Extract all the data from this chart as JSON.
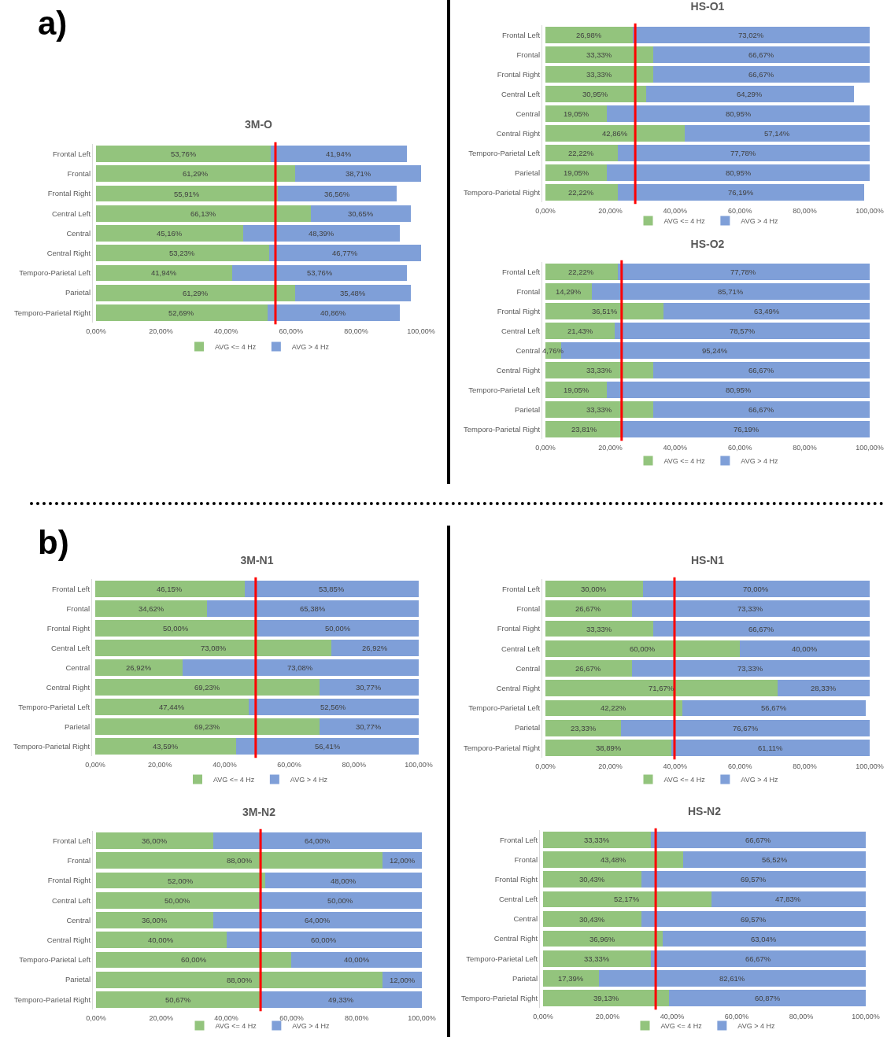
{
  "chart_data": [
    {
      "type": "bar",
      "orientation": "horizontal",
      "stacked": true,
      "title": "3M-O",
      "annotations": [
        "a)"
      ],
      "legend": "bottom",
      "xlim": [
        0,
        100
      ],
      "xticks": [
        {
          "value": 0,
          "label": "0,00%"
        },
        {
          "value": 20,
          "label": "20,00%"
        },
        {
          "value": 40,
          "label": "40,00%"
        },
        {
          "value": 60,
          "label": "60,00%"
        },
        {
          "value": 80,
          "label": "80,00%"
        },
        {
          "value": 100,
          "label": "100,00%"
        }
      ],
      "ref_lines": [
        {
          "axis": "x",
          "value": 55.2,
          "color": "#ff0000"
        }
      ],
      "categories": [
        "Frontal Left",
        "Frontal",
        "Frontal Right",
        "Central Left",
        "Central",
        "Central Right",
        "Temporo-Parietal Left",
        "Parietal",
        "Temporo-Parietal Right"
      ],
      "series": [
        {
          "name": "AVG <= 4 Hz",
          "color": "#93c47d",
          "values": [
            53.76,
            61.29,
            55.91,
            66.13,
            45.16,
            53.23,
            41.94,
            61.29,
            52.69
          ],
          "value_labels": [
            "53,76%",
            "61,29%",
            "55,91%",
            "66,13%",
            "45,16%",
            "53,23%",
            "41,94%",
            "61,29%",
            "52,69%"
          ]
        },
        {
          "name": "AVG > 4 Hz",
          "color": "#7f9fd8",
          "values": [
            41.94,
            38.71,
            36.56,
            30.65,
            48.39,
            46.77,
            53.76,
            35.48,
            40.86
          ],
          "value_labels": [
            "41,94%",
            "38,71%",
            "36,56%",
            "30,65%",
            "48,39%",
            "46,77%",
            "53,76%",
            "35,48%",
            "40,86%"
          ]
        }
      ]
    },
    {
      "type": "bar",
      "orientation": "horizontal",
      "stacked": true,
      "title": "HS-O1",
      "legend": "bottom",
      "xlim": [
        0,
        100
      ],
      "xticks": [
        {
          "value": 0,
          "label": "0,00%"
        },
        {
          "value": 20,
          "label": "20,00%"
        },
        {
          "value": 40,
          "label": "40,00%"
        },
        {
          "value": 60,
          "label": "60,00%"
        },
        {
          "value": 80,
          "label": "80,00%"
        },
        {
          "value": 100,
          "label": "100,00%"
        }
      ],
      "ref_lines": [
        {
          "axis": "x",
          "value": 27.7,
          "color": "#ff0000"
        }
      ],
      "categories": [
        "Frontal Left",
        "Frontal",
        "Frontal Right",
        "Central Left",
        "Central",
        "Central Right",
        "Temporo-Parietal Left",
        "Parietal",
        "Temporo-Parietal Right"
      ],
      "series": [
        {
          "name": "AVG <= 4 Hz",
          "color": "#93c47d",
          "values": [
            26.98,
            33.33,
            33.33,
            30.95,
            19.05,
            42.86,
            22.22,
            19.05,
            22.22
          ],
          "value_labels": [
            "26,98%",
            "33,33%",
            "33,33%",
            "30,95%",
            "19,05%",
            "42,86%",
            "22,22%",
            "19,05%",
            "22,22%"
          ]
        },
        {
          "name": "AVG > 4 Hz",
          "color": "#7f9fd8",
          "values": [
            73.02,
            66.67,
            66.67,
            64.29,
            80.95,
            57.14,
            77.78,
            80.95,
            76.19
          ],
          "value_labels": [
            "73,02%",
            "66,67%",
            "66,67%",
            "64,29%",
            "80,95%",
            "57,14%",
            "77,78%",
            "80,95%",
            "76,19%"
          ]
        }
      ]
    },
    {
      "type": "bar",
      "orientation": "horizontal",
      "stacked": true,
      "title": "HS-O2",
      "legend": "bottom",
      "xlim": [
        0,
        100
      ],
      "xticks": [
        {
          "value": 0,
          "label": "0,00%"
        },
        {
          "value": 20,
          "label": "20,00%"
        },
        {
          "value": 40,
          "label": "40,00%"
        },
        {
          "value": 60,
          "label": "60,00%"
        },
        {
          "value": 80,
          "label": "80,00%"
        },
        {
          "value": 100,
          "label": "100,00%"
        }
      ],
      "ref_lines": [
        {
          "axis": "x",
          "value": 23.5,
          "color": "#ff0000"
        }
      ],
      "categories": [
        "Frontal Left",
        "Frontal",
        "Frontal Right",
        "Central Left",
        "Central",
        "Central Right",
        "Temporo-Parietal Left",
        "Parietal",
        "Temporo-Parietal Right"
      ],
      "series": [
        {
          "name": "AVG <= 4 Hz",
          "color": "#93c47d",
          "values": [
            22.22,
            14.29,
            36.51,
            21.43,
            4.76,
            33.33,
            19.05,
            33.33,
            23.81
          ],
          "value_labels": [
            "22,22%",
            "14,29%",
            "36,51%",
            "21,43%",
            "4,76%",
            "33,33%",
            "19,05%",
            "33,33%",
            "23,81%"
          ]
        },
        {
          "name": "AVG > 4 Hz",
          "color": "#7f9fd8",
          "values": [
            77.78,
            85.71,
            63.49,
            78.57,
            95.24,
            66.67,
            80.95,
            66.67,
            76.19
          ],
          "value_labels": [
            "77,78%",
            "85,71%",
            "63,49%",
            "78,57%",
            "95,24%",
            "66,67%",
            "80,95%",
            "66,67%",
            "76,19%"
          ]
        }
      ]
    },
    {
      "type": "bar",
      "orientation": "horizontal",
      "stacked": true,
      "title": "3M-N1",
      "annotations": [
        "b)"
      ],
      "legend": "bottom",
      "xlim": [
        0,
        100
      ],
      "xticks": [
        {
          "value": 0,
          "label": "0,00%"
        },
        {
          "value": 20,
          "label": "20,00%"
        },
        {
          "value": 40,
          "label": "40,00%"
        },
        {
          "value": 60,
          "label": "60,00%"
        },
        {
          "value": 80,
          "label": "80,00%"
        },
        {
          "value": 100,
          "label": "100,00%"
        }
      ],
      "ref_lines": [
        {
          "axis": "x",
          "value": 49.6,
          "color": "#ff0000"
        }
      ],
      "categories": [
        "Frontal Left",
        "Frontal",
        "Frontal Right",
        "Central Left",
        "Central",
        "Central Right",
        "Temporo-Parietal Left",
        "Parietal",
        "Temporo-Parietal Right"
      ],
      "series": [
        {
          "name": "AVG <= 4 Hz",
          "color": "#93c47d",
          "values": [
            46.15,
            34.62,
            50,
            73.08,
            26.92,
            69.23,
            47.44,
            69.23,
            43.59
          ],
          "value_labels": [
            "46,15%",
            "34,62%",
            "50,00%",
            "73,08%",
            "26,92%",
            "69,23%",
            "47,44%",
            "69,23%",
            "43,59%"
          ]
        },
        {
          "name": "AVG > 4 Hz",
          "color": "#7f9fd8",
          "values": [
            53.85,
            65.38,
            50,
            26.92,
            73.08,
            30.77,
            52.56,
            30.77,
            56.41
          ],
          "value_labels": [
            "53,85%",
            "65,38%",
            "50,00%",
            "26,92%",
            "73,08%",
            "30,77%",
            "52,56%",
            "30,77%",
            "56,41%"
          ]
        }
      ]
    },
    {
      "type": "bar",
      "orientation": "horizontal",
      "stacked": true,
      "title": "HS-N1",
      "legend": "bottom",
      "xlim": [
        0,
        100
      ],
      "xticks": [
        {
          "value": 0,
          "label": "0,00%"
        },
        {
          "value": 20,
          "label": "20,00%"
        },
        {
          "value": 40,
          "label": "40,00%"
        },
        {
          "value": 60,
          "label": "60,00%"
        },
        {
          "value": 80,
          "label": "80,00%"
        },
        {
          "value": 100,
          "label": "100,00%"
        }
      ],
      "ref_lines": [
        {
          "axis": "x",
          "value": 39.8,
          "color": "#ff0000"
        }
      ],
      "categories": [
        "Frontal Left",
        "Frontal",
        "Frontal Right",
        "Central Left",
        "Central",
        "Central Right",
        "Temporo-Parietal Left",
        "Parietal",
        "Temporo-Parietal Right"
      ],
      "series": [
        {
          "name": "AVG <= 4 Hz",
          "color": "#93c47d",
          "values": [
            30,
            26.67,
            33.33,
            60,
            26.67,
            71.67,
            42.22,
            23.33,
            38.89
          ],
          "value_labels": [
            "30,00%",
            "26,67%",
            "33,33%",
            "60,00%",
            "26,67%",
            "71,67%",
            "42,22%",
            "23,33%",
            "38,89%"
          ]
        },
        {
          "name": "AVG > 4 Hz",
          "color": "#7f9fd8",
          "values": [
            70,
            73.33,
            66.67,
            40,
            73.33,
            28.33,
            56.67,
            76.67,
            61.11
          ],
          "value_labels": [
            "70,00%",
            "73,33%",
            "66,67%",
            "40,00%",
            "73,33%",
            "28,33%",
            "56,67%",
            "76,67%",
            "61,11%"
          ]
        }
      ]
    },
    {
      "type": "bar",
      "orientation": "horizontal",
      "stacked": true,
      "title": "3M-N2",
      "legend": "bottom",
      "xlim": [
        0,
        100
      ],
      "xticks": [
        {
          "value": 0,
          "label": "0,00%"
        },
        {
          "value": 20,
          "label": "20,00%"
        },
        {
          "value": 40,
          "label": "40,00%"
        },
        {
          "value": 60,
          "label": "60,00%"
        },
        {
          "value": 80,
          "label": "80,00%"
        },
        {
          "value": 100,
          "label": "100,00%"
        }
      ],
      "ref_lines": [
        {
          "axis": "x",
          "value": 50.5,
          "color": "#ff0000"
        }
      ],
      "categories": [
        "Frontal Left",
        "Frontal",
        "Frontal Right",
        "Central Left",
        "Central",
        "Central Right",
        "Temporo-Parietal Left",
        "Parietal",
        "Temporo-Parietal Right"
      ],
      "series": [
        {
          "name": "AVG <= 4 Hz",
          "color": "#93c47d",
          "values": [
            36,
            88,
            52,
            50,
            36,
            40,
            60,
            88,
            50.67
          ],
          "value_labels": [
            "36,00%",
            "88,00%",
            "52,00%",
            "50,00%",
            "36,00%",
            "40,00%",
            "60,00%",
            "88,00%",
            "50,67%"
          ]
        },
        {
          "name": "AVG > 4 Hz",
          "color": "#7f9fd8",
          "values": [
            64,
            12,
            48,
            50,
            64,
            60,
            40,
            12,
            49.33
          ],
          "value_labels": [
            "64,00%",
            "12,00%",
            "48,00%",
            "50,00%",
            "64,00%",
            "60,00%",
            "40,00%",
            "12,00%",
            "49,33%"
          ]
        }
      ]
    },
    {
      "type": "bar",
      "orientation": "horizontal",
      "stacked": true,
      "title": "HS-N2",
      "legend": "bottom",
      "xlim": [
        0,
        100
      ],
      "xticks": [
        {
          "value": 0,
          "label": "0,00%"
        },
        {
          "value": 20,
          "label": "20,00%"
        },
        {
          "value": 40,
          "label": "40,00%"
        },
        {
          "value": 60,
          "label": "60,00%"
        },
        {
          "value": 80,
          "label": "80,00%"
        },
        {
          "value": 100,
          "label": "100,00%"
        }
      ],
      "ref_lines": [
        {
          "axis": "x",
          "value": 34.9,
          "color": "#ff0000"
        }
      ],
      "categories": [
        "Frontal Left",
        "Frontal",
        "Frontal Right",
        "Central Left",
        "Central",
        "Central Right",
        "Temporo-Parietal Left",
        "Parietal",
        "Temporo-Parietal Right"
      ],
      "series": [
        {
          "name": "AVG <= 4 Hz",
          "color": "#93c47d",
          "values": [
            33.33,
            43.48,
            30.43,
            52.17,
            30.43,
            36.96,
            33.33,
            17.39,
            39.13
          ],
          "value_labels": [
            "33,33%",
            "43,48%",
            "30,43%",
            "52,17%",
            "30,43%",
            "36,96%",
            "33,33%",
            "17,39%",
            "39,13%"
          ]
        },
        {
          "name": "AVG > 4 Hz",
          "color": "#7f9fd8",
          "values": [
            66.67,
            56.52,
            69.57,
            47.83,
            69.57,
            63.04,
            66.67,
            82.61,
            60.87
          ],
          "value_labels": [
            "66,67%",
            "56,52%",
            "69,57%",
            "47,83%",
            "69,57%",
            "63,04%",
            "66,67%",
            "82,61%",
            "60,87%"
          ]
        }
      ]
    }
  ]
}
